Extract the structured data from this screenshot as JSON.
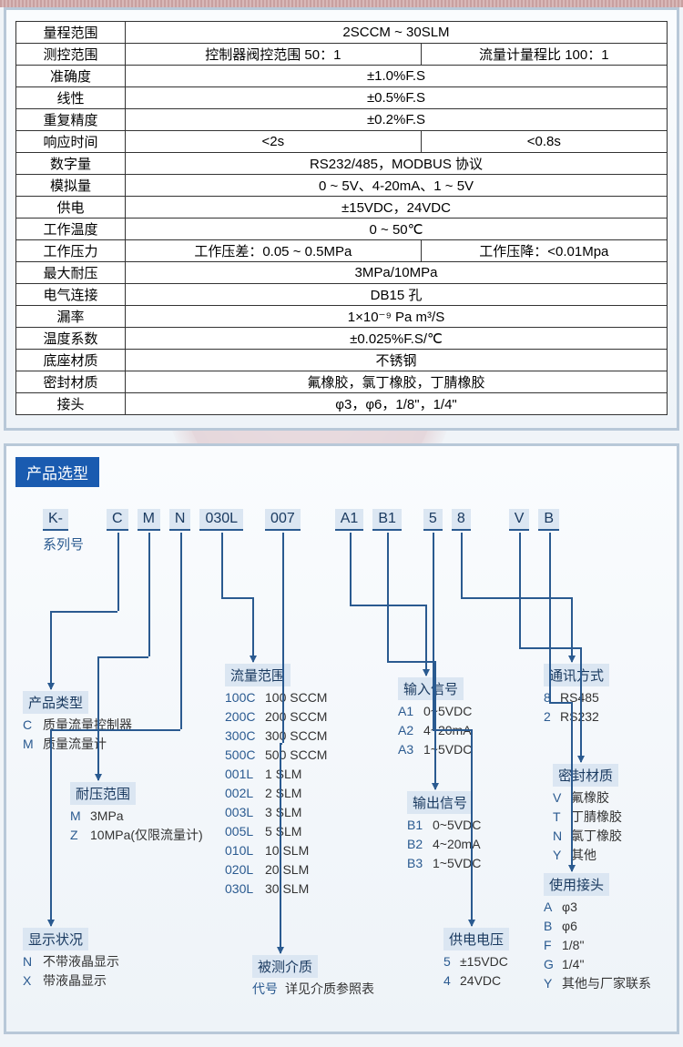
{
  "spec_table": {
    "rows": [
      {
        "label": "量程范围",
        "cells": [
          {
            "text": "2SCCM ~ 30SLM",
            "colspan": 2
          }
        ]
      },
      {
        "label": "测控范围",
        "cells": [
          {
            "text": "控制器阀控范围 50：1"
          },
          {
            "text": "流量计量程比 100：1"
          }
        ]
      },
      {
        "label": "准确度",
        "cells": [
          {
            "text": "±1.0%F.S",
            "colspan": 2
          }
        ]
      },
      {
        "label": "线性",
        "cells": [
          {
            "text": "±0.5%F.S",
            "colspan": 2
          }
        ]
      },
      {
        "label": "重复精度",
        "cells": [
          {
            "text": "±0.2%F.S",
            "colspan": 2
          }
        ]
      },
      {
        "label": "响应时间",
        "cells": [
          {
            "text": "<2s"
          },
          {
            "text": "<0.8s"
          }
        ]
      },
      {
        "label": "数字量",
        "cells": [
          {
            "text": "RS232/485，MODBUS 协议",
            "colspan": 2
          }
        ]
      },
      {
        "label": "模拟量",
        "cells": [
          {
            "text": "0 ~ 5V、4-20mA、1 ~ 5V",
            "colspan": 2
          }
        ]
      },
      {
        "label": "供电",
        "cells": [
          {
            "text": "±15VDC，24VDC",
            "colspan": 2
          }
        ]
      },
      {
        "label": "工作温度",
        "cells": [
          {
            "text": "0 ~ 50℃",
            "colspan": 2
          }
        ]
      },
      {
        "label": "工作压力",
        "cells": [
          {
            "text": "工作压差：0.05 ~ 0.5MPa"
          },
          {
            "text": "工作压降：<0.01Mpa"
          }
        ]
      },
      {
        "label": "最大耐压",
        "cells": [
          {
            "text": "3MPa/10MPa",
            "colspan": 2
          }
        ]
      },
      {
        "label": "电气连接",
        "cells": [
          {
            "text": "DB15 孔",
            "colspan": 2
          }
        ]
      },
      {
        "label": "漏率",
        "cells": [
          {
            "text": "1×10⁻⁹ Pa m³/S",
            "colspan": 2
          }
        ]
      },
      {
        "label": "温度系数",
        "cells": [
          {
            "text": "±0.025%F.S/℃",
            "colspan": 2
          }
        ]
      },
      {
        "label": "底座材质",
        "cells": [
          {
            "text": "不锈钢",
            "colspan": 2
          }
        ]
      },
      {
        "label": "密封材质",
        "cells": [
          {
            "text": "氟橡胶，氯丁橡胶，丁腈橡胶",
            "colspan": 2
          }
        ]
      },
      {
        "label": "接头",
        "cells": [
          {
            "text": "φ3，φ6，1/8\"，1/4\"",
            "colspan": 2
          }
        ]
      }
    ]
  },
  "selection_title": "产品选型",
  "codebar": [
    "K-",
    "C",
    "M",
    "N",
    "030L",
    "007",
    "A1",
    "B1",
    "5",
    "8",
    "V",
    "B"
  ],
  "series_label": "系列号",
  "blocks": {
    "product_type": {
      "title": "产品类型",
      "opts": [
        [
          "C",
          "质量流量控制器"
        ],
        [
          "M",
          "质量流量计"
        ]
      ]
    },
    "pressure": {
      "title": "耐压范围",
      "opts": [
        [
          "M",
          "3MPa"
        ],
        [
          "Z",
          "10MPa(仅限流量计)"
        ]
      ]
    },
    "display": {
      "title": "显示状况",
      "opts": [
        [
          "N",
          "不带液晶显示"
        ],
        [
          "X",
          "带液晶显示"
        ]
      ]
    },
    "flow_range": {
      "title": "流量范围",
      "opts": [
        [
          "100C",
          "100 SCCM"
        ],
        [
          "200C",
          "200 SCCM"
        ],
        [
          "300C",
          "300 SCCM"
        ],
        [
          "500C",
          "500 SCCM"
        ],
        [
          "001L",
          "1 SLM"
        ],
        [
          "002L",
          "2 SLM"
        ],
        [
          "003L",
          "3 SLM"
        ],
        [
          "005L",
          "5 SLM"
        ],
        [
          "010L",
          "10 SLM"
        ],
        [
          "020L",
          "20 SLM"
        ],
        [
          "030L",
          "30 SLM"
        ]
      ]
    },
    "medium": {
      "title": "被测介质",
      "opts": [
        [
          "代号",
          "详见介质参照表"
        ]
      ]
    },
    "input": {
      "title": "输入信号",
      "opts": [
        [
          "A1",
          "0~5VDC"
        ],
        [
          "A2",
          "4~20mA"
        ],
        [
          "A3",
          "1~5VDC"
        ]
      ]
    },
    "output": {
      "title": "输出信号",
      "opts": [
        [
          "B1",
          "0~5VDC"
        ],
        [
          "B2",
          "4~20mA"
        ],
        [
          "B3",
          "1~5VDC"
        ]
      ]
    },
    "power": {
      "title": "供电电压",
      "opts": [
        [
          "5",
          "±15VDC"
        ],
        [
          "4",
          "24VDC"
        ]
      ]
    },
    "comm": {
      "title": "通讯方式",
      "opts": [
        [
          "8",
          "RS485"
        ],
        [
          "2",
          "RS232"
        ]
      ]
    },
    "seal": {
      "title": "密封材质",
      "opts": [
        [
          "V",
          "氟橡胶"
        ],
        [
          "T",
          "丁腈橡胶"
        ],
        [
          "N",
          "氯丁橡胶"
        ],
        [
          "Y",
          "其他"
        ]
      ]
    },
    "connector": {
      "title": "使用接头",
      "opts": [
        [
          "A",
          "φ3"
        ],
        [
          "B",
          "φ6"
        ],
        [
          "F",
          "1/8\""
        ],
        [
          "G",
          "1/4\""
        ],
        [
          "Y",
          "其他与厂家联系"
        ]
      ]
    }
  }
}
